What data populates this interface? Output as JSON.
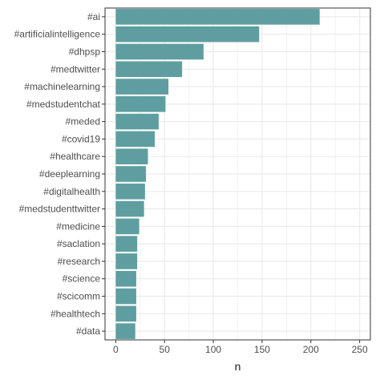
{
  "chart_data": {
    "type": "bar",
    "orientation": "horizontal",
    "categories": [
      "#ai",
      "#artificialintelligence",
      "#dhpsp",
      "#medtwitter",
      "#machinelearning",
      "#medstudentchat",
      "#meded",
      "#covid19",
      "#healthcare",
      "#deeplearning",
      "#digitalhealth",
      "#medstudenttwitter",
      "#medicine",
      "#saclation",
      "#research",
      "#science",
      "#scicomm",
      "#healthtech",
      "#data"
    ],
    "values": [
      209,
      147,
      90,
      68,
      54,
      51,
      44,
      40,
      33,
      31,
      30,
      29,
      24,
      22,
      22,
      21,
      21,
      21,
      20
    ],
    "xlabel": "n",
    "ylabel": "",
    "xlim": [
      -11,
      261
    ],
    "xticks": [
      0,
      50,
      100,
      150,
      200,
      250
    ],
    "grid": true,
    "bar_color": "#5f9ea0",
    "panel_border_color": "#333333",
    "grid_color": "#ebebeb"
  }
}
